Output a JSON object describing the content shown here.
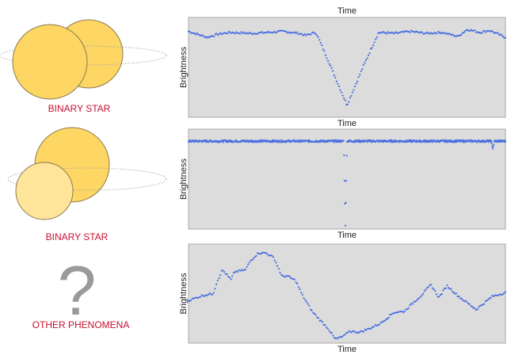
{
  "colors": {
    "star": "#fdd663",
    "star_light": "#fee599",
    "star_stroke": "#8c7a4e",
    "label": "#c8102e",
    "dots": "#4a6fe0",
    "plot_bg": "#dcdcdc",
    "question": "#9a9a9a"
  },
  "illustrations": [
    {
      "label": "BINARY STAR",
      "icon": "binary-star-eclipse"
    },
    {
      "label": "BINARY STAR",
      "icon": "binary-star-transit"
    },
    {
      "label": "OTHER PHENOMENA",
      "icon": "question-mark",
      "glyph": "?"
    }
  ],
  "chart_data": [
    {
      "type": "scatter",
      "title": "Time",
      "xlabel": "Time",
      "ylabel": "Brightness",
      "xlim": [
        0,
        1
      ],
      "ylim": [
        0,
        1
      ],
      "grid": false,
      "samples": 260,
      "points": [
        [
          0,
          0.86
        ],
        [
          0.03,
          0.83
        ],
        [
          0.06,
          0.8
        ],
        [
          0.09,
          0.83
        ],
        [
          0.13,
          0.85
        ],
        [
          0.2,
          0.84
        ],
        [
          0.25,
          0.85
        ],
        [
          0.3,
          0.86
        ],
        [
          0.35,
          0.84
        ],
        [
          0.37,
          0.82
        ],
        [
          0.4,
          0.85
        ],
        [
          0.405,
          0.83
        ],
        [
          0.45,
          0.5
        ],
        [
          0.5,
          0.12
        ],
        [
          0.55,
          0.5
        ],
        [
          0.6,
          0.85
        ],
        [
          0.65,
          0.84
        ],
        [
          0.7,
          0.86
        ],
        [
          0.75,
          0.84
        ],
        [
          0.8,
          0.85
        ],
        [
          0.85,
          0.81
        ],
        [
          0.88,
          0.88
        ],
        [
          0.92,
          0.85
        ],
        [
          0.95,
          0.87
        ],
        [
          1,
          0.8
        ]
      ]
    },
    {
      "type": "scatter",
      "title": "",
      "xlabel": "Time",
      "ylabel": "Brightness",
      "xlim": [
        0,
        1
      ],
      "ylim": [
        0,
        1
      ],
      "grid": false,
      "samples": 700,
      "points": [
        [
          0,
          0.88
        ],
        [
          0.49,
          0.88
        ],
        [
          0.492,
          0.5
        ],
        [
          0.495,
          0.04
        ],
        [
          0.498,
          0.5
        ],
        [
          0.5,
          0.88
        ],
        [
          0.955,
          0.88
        ],
        [
          0.96,
          0.81
        ],
        [
          0.965,
          0.88
        ],
        [
          1,
          0.88
        ]
      ]
    },
    {
      "type": "scatter",
      "title": "",
      "xlabel": "Time",
      "ylabel": "Brightness",
      "xlim": [
        0,
        1
      ],
      "ylim": [
        0,
        1
      ],
      "grid": false,
      "samples": 240,
      "points": [
        [
          0,
          0.43
        ],
        [
          0.044,
          0.48
        ],
        [
          0.078,
          0.5
        ],
        [
          0.09,
          0.62
        ],
        [
          0.107,
          0.74
        ],
        [
          0.134,
          0.64
        ],
        [
          0.145,
          0.72
        ],
        [
          0.18,
          0.74
        ],
        [
          0.195,
          0.83
        ],
        [
          0.22,
          0.91
        ],
        [
          0.245,
          0.91
        ],
        [
          0.27,
          0.86
        ],
        [
          0.295,
          0.67
        ],
        [
          0.31,
          0.68
        ],
        [
          0.338,
          0.63
        ],
        [
          0.36,
          0.48
        ],
        [
          0.39,
          0.32
        ],
        [
          0.413,
          0.24
        ],
        [
          0.44,
          0.15
        ],
        [
          0.463,
          0.04
        ],
        [
          0.49,
          0.07
        ],
        [
          0.505,
          0.12
        ],
        [
          0.54,
          0.11
        ],
        [
          0.573,
          0.15
        ],
        [
          0.606,
          0.2
        ],
        [
          0.648,
          0.31
        ],
        [
          0.681,
          0.32
        ],
        [
          0.706,
          0.4
        ],
        [
          0.731,
          0.47
        ],
        [
          0.765,
          0.59
        ],
        [
          0.79,
          0.46
        ],
        [
          0.815,
          0.58
        ],
        [
          0.857,
          0.46
        ],
        [
          0.908,
          0.34
        ],
        [
          0.958,
          0.47
        ],
        [
          1,
          0.51
        ]
      ]
    }
  ]
}
